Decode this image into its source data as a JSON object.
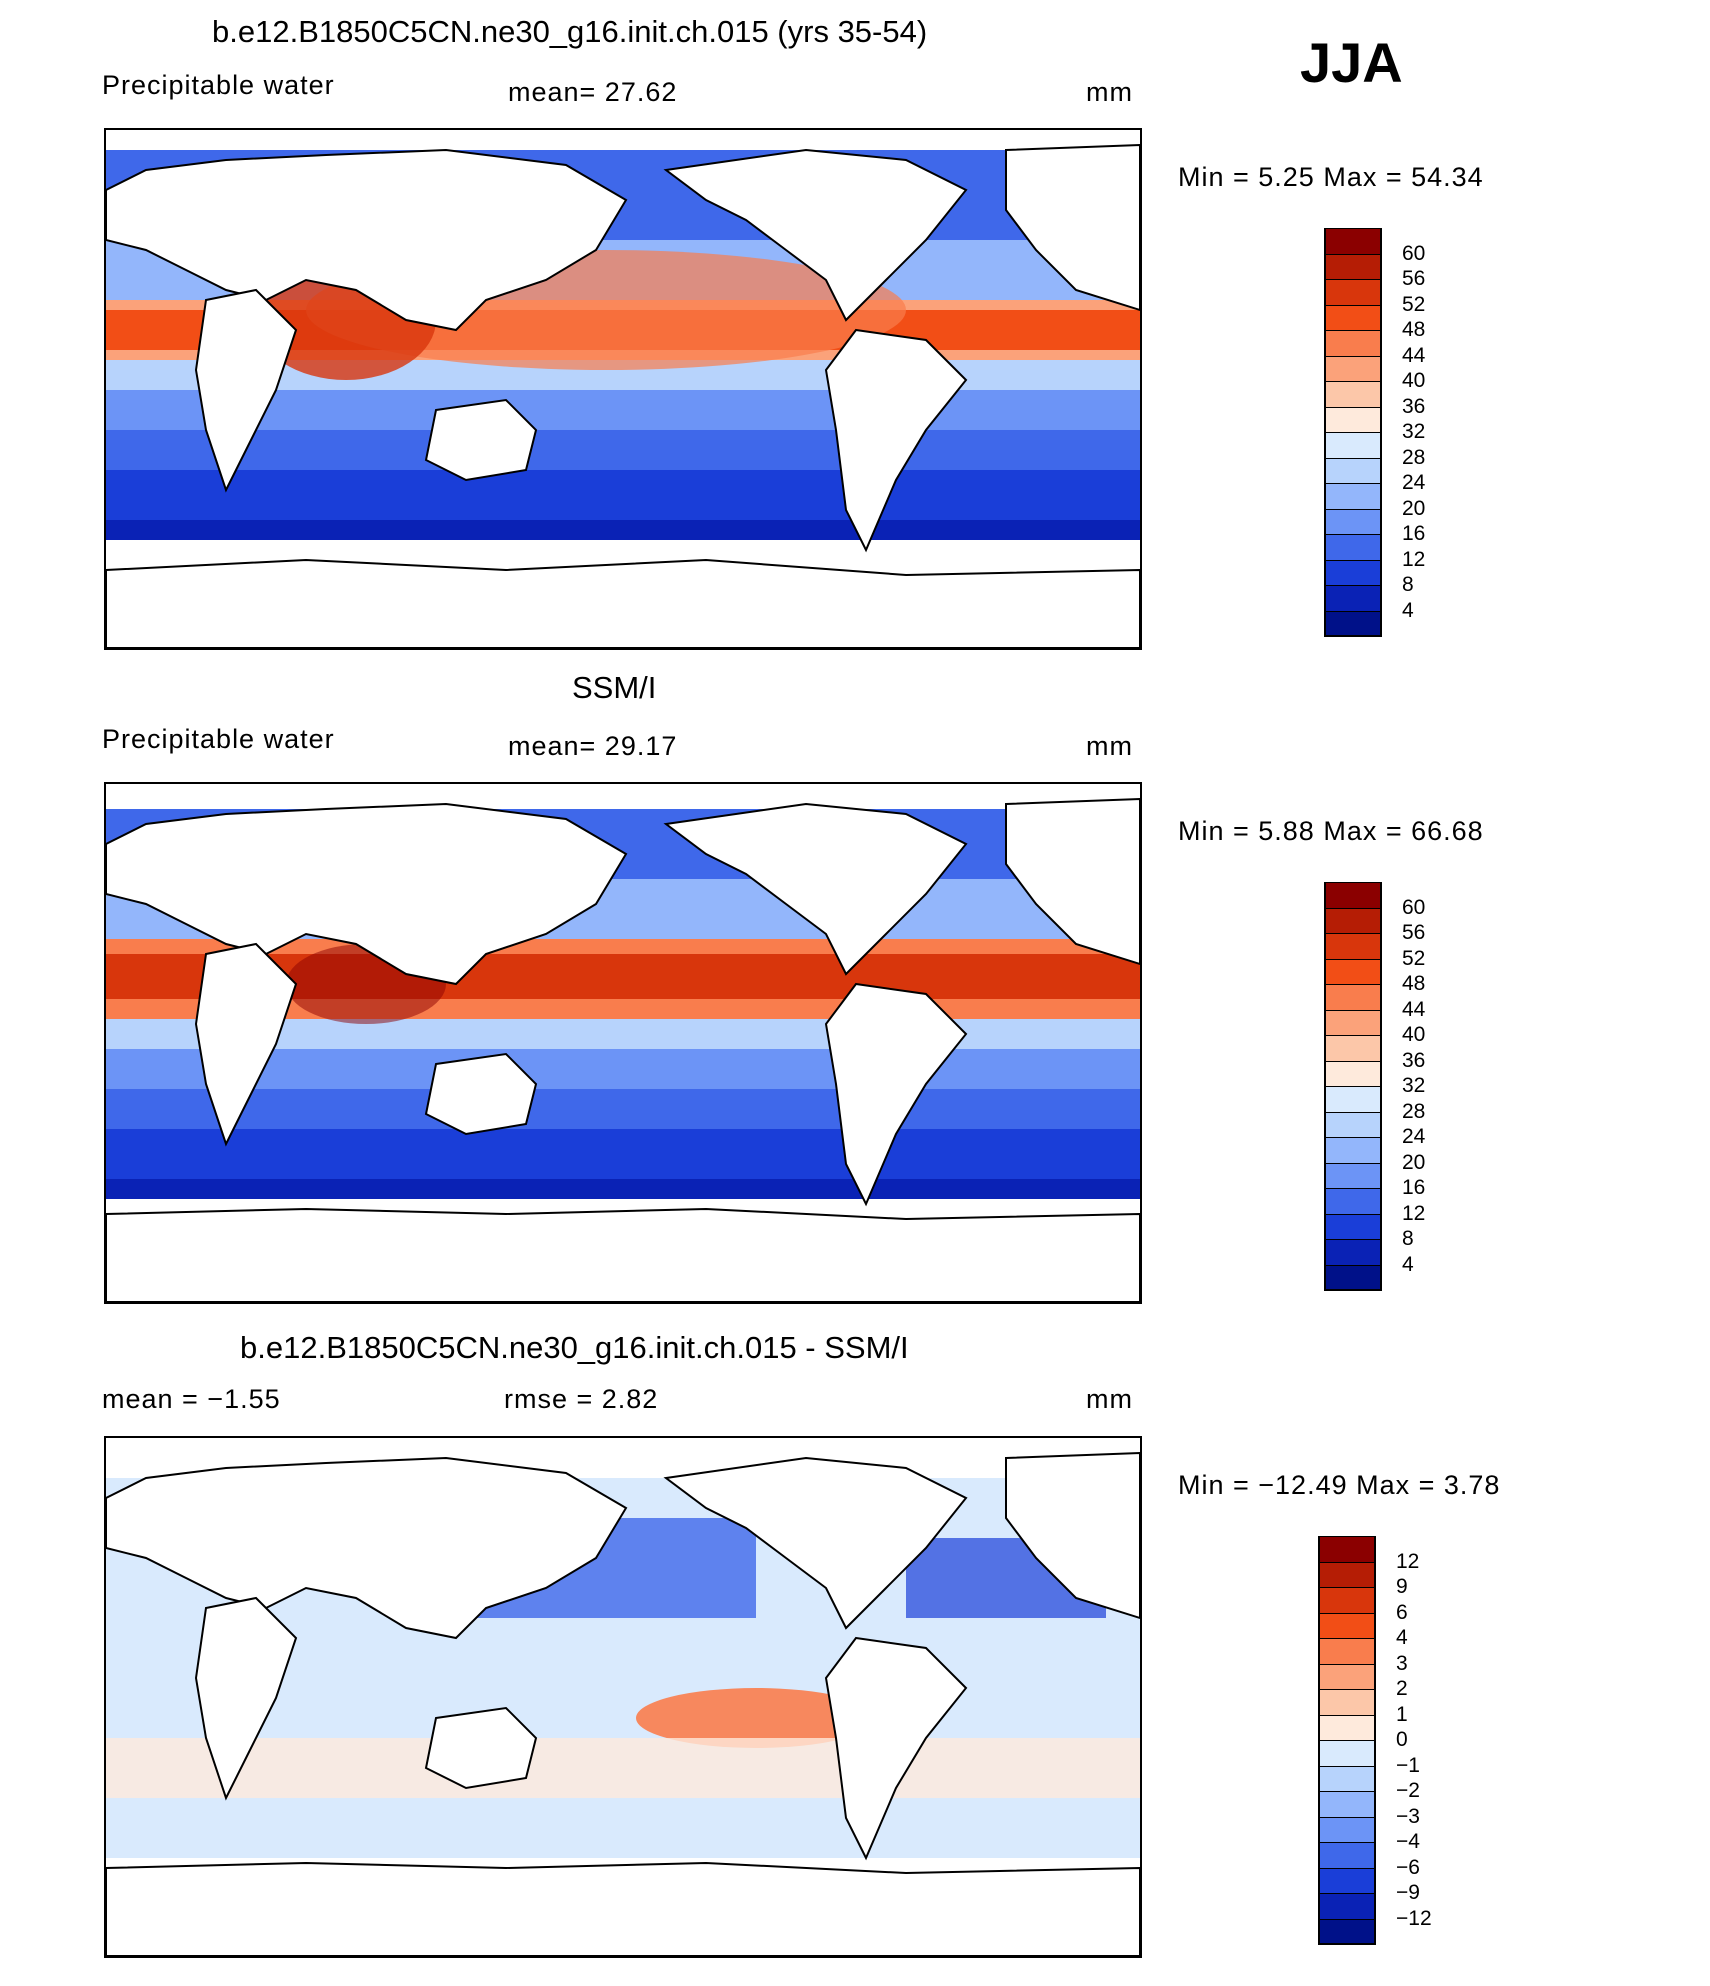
{
  "season": "JJA",
  "panels": [
    {
      "id": "model",
      "title": "b.e12.B1850C5CN.ne30_g16.init.ch.015 (yrs 35-54)",
      "left_label": "Precipitable  water",
      "center_label": "mean=   27.62",
      "units": "mm",
      "minmax": "Min  =     5.25  Max  =    54.34",
      "colorbar": {
        "labels": [
          "60",
          "56",
          "52",
          "48",
          "44",
          "40",
          "36",
          "32",
          "28",
          "24",
          "20",
          "16",
          "12",
          "8",
          "4"
        ],
        "colors": [
          "#8b0000",
          "#b51d05",
          "#d8360c",
          "#f24e16",
          "#f97d4d",
          "#fba27a",
          "#fcc7a9",
          "#feeadc",
          "#d9eafd",
          "#b7d3fc",
          "#93b6fb",
          "#6c94f6",
          "#3f68ea",
          "#1a3ed8",
          "#0a22b5",
          "#001189"
        ]
      }
    },
    {
      "id": "obs",
      "title": "SSM/I",
      "left_label": "Precipitable  water",
      "center_label": "mean=   29.17",
      "units": "mm",
      "minmax": "Min  =     5.88  Max  =    66.68",
      "colorbar": {
        "labels": [
          "60",
          "56",
          "52",
          "48",
          "44",
          "40",
          "36",
          "32",
          "28",
          "24",
          "20",
          "16",
          "12",
          "8",
          "4"
        ],
        "colors": [
          "#8b0000",
          "#b51d05",
          "#d8360c",
          "#f24e16",
          "#f97d4d",
          "#fba27a",
          "#fcc7a9",
          "#feeadc",
          "#d9eafd",
          "#b7d3fc",
          "#93b6fb",
          "#6c94f6",
          "#3f68ea",
          "#1a3ed8",
          "#0a22b5",
          "#001189"
        ]
      }
    },
    {
      "id": "diff",
      "title": "b.e12.B1850C5CN.ne30_g16.init.ch.015 - SSM/I",
      "left_label": "mean  =    −1.55",
      "center_label": "rmse  =     2.82",
      "units": "mm",
      "minmax": "Min  =  −12.49  Max  =      3.78",
      "colorbar": {
        "labels": [
          "12",
          "9",
          "6",
          "4",
          "3",
          "2",
          "1",
          "0",
          "−1",
          "−2",
          "−3",
          "−4",
          "−6",
          "−9",
          "−12"
        ],
        "colors": [
          "#8b0000",
          "#b51d05",
          "#d8360c",
          "#f24e16",
          "#f97d4d",
          "#fba27a",
          "#fcc7a9",
          "#feeadc",
          "#d9eafd",
          "#b7d3fc",
          "#93b6fb",
          "#6c94f6",
          "#3f68ea",
          "#1a3ed8",
          "#0a22b5",
          "#001189"
        ]
      }
    }
  ]
}
